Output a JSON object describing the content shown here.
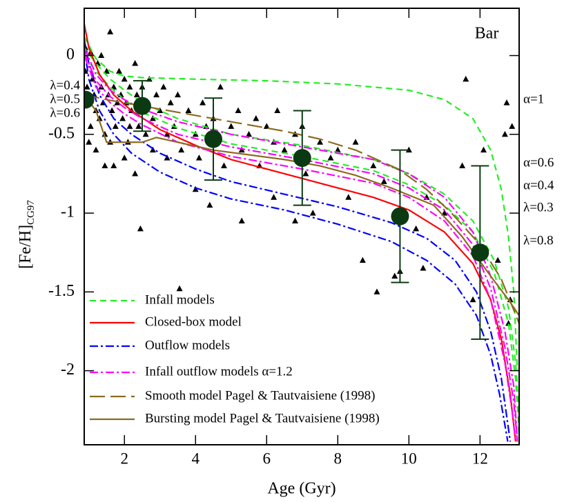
{
  "chart_data": {
    "type": "scatter",
    "title": "Bar",
    "xlabel": "Age (Gyr)",
    "ylabel": "[Fe/H]",
    "ylabel_sub": "CG97",
    "xlim": [
      0.87,
      13.1
    ],
    "ylim": [
      -2.47,
      0.3
    ],
    "xticks": [
      2,
      4,
      6,
      8,
      10,
      12
    ],
    "yticks": [
      0,
      -0.5,
      -1,
      -1.5,
      -2
    ],
    "points": {
      "color": "#000000",
      "x": [
        0.9,
        0.95,
        1.0,
        1.05,
        1.1,
        1.15,
        1.2,
        1.25,
        1.3,
        1.35,
        1.4,
        1.45,
        1.5,
        1.55,
        1.6,
        1.65,
        1.7,
        1.75,
        1.8,
        1.85,
        1.9,
        1.95,
        2.0,
        2.05,
        2.1,
        2.15,
        2.2,
        2.3,
        2.35,
        2.4,
        2.5,
        2.6,
        2.7,
        2.8,
        2.9,
        3.0,
        3.1,
        3.2,
        3.3,
        3.4,
        3.5,
        3.55,
        3.6,
        3.8,
        4.0,
        4.1,
        4.2,
        4.3,
        4.5,
        4.6,
        4.7,
        4.8,
        5.0,
        5.2,
        5.3,
        5.5,
        5.7,
        5.8,
        6.0,
        6.2,
        6.3,
        6.5,
        6.8,
        7.0,
        7.1,
        7.3,
        7.5,
        7.8,
        8.0,
        8.3,
        8.5,
        8.7,
        9.0,
        9.1,
        9.3,
        9.6,
        9.75,
        10.0,
        10.2,
        10.4,
        10.5,
        11.0,
        11.5,
        11.6,
        11.8,
        12.1,
        12.5,
        12.7,
        12.75,
        12.8,
        12.85,
        12.9,
        0.9,
        1.0,
        1.2,
        1.45,
        1.7,
        2.0,
        2.3,
        2.45,
        2.8,
        3.2,
        4.0,
        4.4,
        5.3,
        6.2,
        6.8,
        1.35,
        1.05,
        1.6,
        2.15,
        2.6
      ],
      "values": [
        -0.1,
        -0.2,
        -0.3,
        -0.45,
        -0.15,
        -0.25,
        -0.35,
        -0.05,
        -0.4,
        -0.2,
        -0.3,
        -0.5,
        -0.1,
        -0.25,
        0.15,
        -0.35,
        -0.2,
        -0.45,
        -0.3,
        -0.1,
        -0.25,
        -0.4,
        -0.15,
        -0.3,
        -0.55,
        -0.2,
        -0.35,
        -0.05,
        -0.25,
        -0.45,
        -0.2,
        -0.3,
        -0.15,
        -0.4,
        -0.25,
        -0.35,
        -0.2,
        -0.5,
        -0.3,
        -0.45,
        -0.25,
        -1.48,
        -0.6,
        -0.35,
        -0.5,
        -0.65,
        -0.3,
        -0.45,
        -0.4,
        -0.55,
        -0.2,
        -0.7,
        -0.45,
        -0.35,
        -0.6,
        -0.5,
        -0.4,
        -0.7,
        -0.45,
        -0.55,
        -0.35,
        -0.6,
        -0.5,
        -0.45,
        -0.75,
        -1.0,
        -0.55,
        -0.65,
        -0.6,
        -0.9,
        -0.55,
        -1.3,
        -0.7,
        -1.5,
        -0.8,
        -1.4,
        -1.37,
        -0.6,
        -1.1,
        -1.35,
        -0.9,
        -1.0,
        -0.7,
        -0.15,
        -1.55,
        -0.6,
        -1.3,
        -0.5,
        -0.3,
        -1.7,
        -1.55,
        -0.45,
        0.05,
        -0.55,
        -0.6,
        -0.7,
        -0.7,
        -0.65,
        -0.75,
        -1.1,
        -0.6,
        -0.65,
        -0.85,
        -0.95,
        -1.05,
        -0.9,
        -1.05,
        0.0,
        0.02,
        -0.55,
        -0.45,
        -0.5
      ]
    },
    "means": {
      "color": "#0b3a12",
      "x": [
        0.9,
        2.5,
        4.5,
        7.0,
        9.75,
        12.0
      ],
      "values": [
        -0.28,
        -0.32,
        -0.53,
        -0.65,
        -1.02,
        -1.25
      ],
      "errors": [
        null,
        0.16,
        0.26,
        0.3,
        0.42,
        0.55
      ]
    },
    "series": [
      {
        "name": "Infall models",
        "color": "#22ee22",
        "dash": "dash",
        "lines": [
          {
            "x": [
              0.87,
              1.2,
              1.6,
              2.0,
              2.5,
              4,
              6,
              8,
              10,
              11,
              11.8,
              12.3,
              12.6,
              12.8,
              12.95,
              13.05
            ],
            "values": [
              0.12,
              -0.02,
              -0.1,
              -0.13,
              -0.14,
              -0.15,
              -0.16,
              -0.18,
              -0.22,
              -0.28,
              -0.4,
              -0.6,
              -0.85,
              -1.15,
              -1.5,
              -2.0
            ]
          },
          {
            "x": [
              0.87,
              1.2,
              1.6,
              2.0,
              2.5,
              3.5,
              5,
              7,
              9,
              10,
              11,
              11.8,
              12.4,
              12.8,
              13.0,
              13.1
            ],
            "values": [
              0.05,
              -0.05,
              -0.15,
              -0.22,
              -0.3,
              -0.4,
              -0.5,
              -0.57,
              -0.66,
              -0.75,
              -0.88,
              -1.05,
              -1.3,
              -1.6,
              -1.95,
              -2.3
            ]
          },
          {
            "x": [
              0.87,
              1.2,
              1.6,
              2.0,
              2.5,
              3.5,
              5,
              7,
              9,
              10,
              11,
              11.8,
              12.4,
              12.8,
              13.0,
              13.1
            ],
            "values": [
              0.0,
              -0.1,
              -0.2,
              -0.28,
              -0.36,
              -0.46,
              -0.56,
              -0.64,
              -0.73,
              -0.82,
              -0.95,
              -1.12,
              -1.38,
              -1.7,
              -2.05,
              -2.4
            ]
          }
        ]
      },
      {
        "name": "Closed-box model",
        "color": "#ff0000",
        "dash": "solid",
        "lines": [
          {
            "x": [
              0.87,
              1.0,
              1.3,
              1.7,
              2.2,
              3,
              4,
              5,
              6,
              7,
              8,
              9,
              10,
              11,
              11.8,
              12.3,
              12.6,
              12.85,
              13.0
            ],
            "values": [
              0.2,
              0.05,
              -0.12,
              -0.25,
              -0.35,
              -0.47,
              -0.57,
              -0.66,
              -0.72,
              -0.78,
              -0.84,
              -0.9,
              -0.98,
              -1.12,
              -1.32,
              -1.55,
              -1.8,
              -2.15,
              -2.45
            ]
          }
        ]
      },
      {
        "name": "Outflow models",
        "color": "#0000ff",
        "dash": "dashdot",
        "lines": [
          {
            "x": [
              0.87,
              1.0,
              1.3,
              1.7,
              2.2,
              3,
              4,
              5,
              6.5,
              8,
              9.5,
              10.5,
              11.3,
              11.9,
              12.3,
              12.6,
              12.85
            ],
            "values": [
              0.1,
              -0.05,
              -0.25,
              -0.4,
              -0.5,
              -0.62,
              -0.72,
              -0.8,
              -0.88,
              -0.96,
              -1.06,
              -1.16,
              -1.3,
              -1.5,
              -1.75,
              -2.05,
              -2.45
            ]
          },
          {
            "x": [
              0.87,
              1.0,
              1.3,
              1.7,
              2.2,
              3,
              4,
              5,
              6.5,
              8,
              9.5,
              10.5,
              11.3,
              11.9,
              12.3,
              12.55,
              12.78
            ],
            "values": [
              0.05,
              -0.15,
              -0.35,
              -0.5,
              -0.62,
              -0.74,
              -0.84,
              -0.91,
              -0.98,
              -1.07,
              -1.18,
              -1.3,
              -1.45,
              -1.65,
              -1.9,
              -2.15,
              -2.45
            ]
          }
        ]
      },
      {
        "name": "Infall outflow models α=1.2",
        "color": "#ff00ff",
        "dash": "dashdot",
        "lines": [
          {
            "x": [
              0.87,
              1.2,
              1.6,
              2.0,
              2.5,
              3.5,
              5,
              7,
              9,
              10,
              11,
              11.8,
              12.3,
              12.7,
              12.95,
              13.05
            ],
            "values": [
              0.05,
              -0.12,
              -0.22,
              -0.28,
              -0.34,
              -0.42,
              -0.5,
              -0.58,
              -0.66,
              -0.75,
              -0.9,
              -1.12,
              -1.4,
              -1.75,
              -2.1,
              -2.45
            ]
          },
          {
            "x": [
              0.87,
              1.2,
              1.6,
              2.0,
              2.5,
              3.5,
              5,
              7,
              9,
              10,
              11,
              11.8,
              12.3,
              12.7,
              12.95,
              13.05
            ],
            "values": [
              0.02,
              -0.16,
              -0.26,
              -0.33,
              -0.4,
              -0.5,
              -0.58,
              -0.66,
              -0.75,
              -0.84,
              -0.98,
              -1.2,
              -1.48,
              -1.85,
              -2.2,
              -2.45
            ]
          },
          {
            "x": [
              0.87,
              1.2,
              1.6,
              2.0,
              2.5,
              3.5,
              5,
              7,
              9,
              10,
              11,
              11.8,
              12.3,
              12.7,
              12.9,
              13.0
            ],
            "values": [
              0.0,
              -0.2,
              -0.3,
              -0.37,
              -0.44,
              -0.55,
              -0.64,
              -0.72,
              -0.81,
              -0.9,
              -1.05,
              -1.27,
              -1.55,
              -1.95,
              -2.25,
              -2.45
            ]
          }
        ]
      },
      {
        "name": "Smooth model Pagel & Tautvaisiene (1998)",
        "color": "#8c6b1f",
        "dash": "longdash",
        "lines": [
          {
            "x": [
              0.87,
              1.5,
              2.5,
              3.5,
              4.5,
              5.5,
              6.5,
              7.5,
              8.5,
              9.7,
              10.5,
              11.2,
              12.0,
              12.6,
              13.1
            ],
            "values": [
              -0.25,
              -0.28,
              -0.32,
              -0.36,
              -0.4,
              -0.44,
              -0.48,
              -0.53,
              -0.6,
              -0.72,
              -0.85,
              -1.0,
              -1.2,
              -1.42,
              -1.7
            ]
          }
        ]
      },
      {
        "name": "Bursting model Pagel & Tautvaisiene (1998)",
        "color": "#8c6b1f",
        "dash": "solid",
        "lines": [
          {
            "x": [
              0.87,
              1.2,
              1.5,
              1.9,
              2.5,
              2.9,
              3.5,
              4.5,
              5.5,
              6.5,
              7.5,
              8.5,
              9.5,
              10.7,
              11.5,
              12.3,
              12.8,
              13.1
            ],
            "values": [
              -0.25,
              -0.35,
              -0.55,
              -0.55,
              -0.55,
              -0.52,
              -0.55,
              -0.6,
              -0.63,
              -0.66,
              -0.7,
              -0.76,
              -0.84,
              -0.95,
              -1.15,
              -1.4,
              -1.55,
              -1.65
            ]
          }
        ]
      }
    ],
    "annotations_left": [
      "λ=0.4",
      "λ=0.5",
      "λ=0.6"
    ],
    "annotations_right": [
      {
        "text": "α=1",
        "color": "#22ee22"
      },
      {
        "text": "α=0.6",
        "color": "#22ee22"
      },
      {
        "text": "α=0.4",
        "color": "#22ee22"
      },
      {
        "text": "λ=0.3",
        "color": "#0000ff"
      },
      {
        "text": "λ=0.8",
        "color": "#0000ff"
      }
    ],
    "annotations_left_color": "#ff00ff"
  }
}
